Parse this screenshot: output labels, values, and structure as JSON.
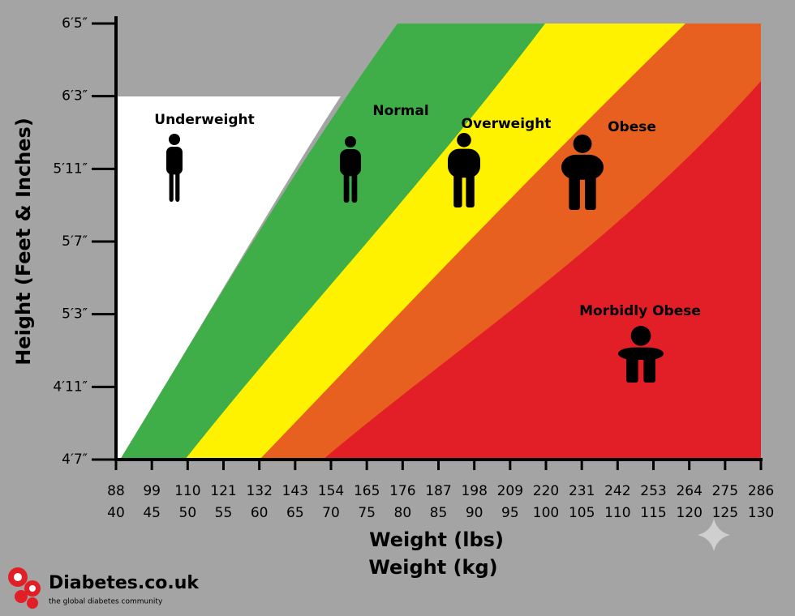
{
  "chart_data": {
    "type": "zones",
    "y_label": "Height (Feet & Inches)",
    "x_label": "Weight (lbs)",
    "x2_label": "Weight (kg)",
    "ycategories": [
      "4′7″",
      "4′11″",
      "5′3″",
      "5′7″",
      "5′11″",
      "6′3″",
      "6′5″"
    ],
    "xlim": [
      88,
      286
    ],
    "xticks": [
      88,
      99,
      110,
      121,
      132,
      143,
      154,
      165,
      176,
      187,
      198,
      209,
      220,
      231,
      242,
      253,
      264,
      275,
      286
    ],
    "x2lim": [
      40,
      130
    ],
    "x2ticks": [
      40,
      45,
      50,
      55,
      60,
      65,
      70,
      75,
      80,
      85,
      90,
      95,
      100,
      105,
      110,
      115,
      120,
      125,
      130
    ],
    "zones": [
      {
        "name": "Underweight",
        "color": "#ffffff"
      },
      {
        "name": "Normal",
        "color": "#3fae49"
      },
      {
        "name": "Overweight",
        "color": "#fff200"
      },
      {
        "name": "Obese",
        "color": "#e8601f"
      },
      {
        "name": "Morbidly Obese",
        "color": "#e21f26"
      }
    ]
  },
  "logo": {
    "name": "Diabetes.co.uk",
    "tagline": "the global diabetes community"
  }
}
